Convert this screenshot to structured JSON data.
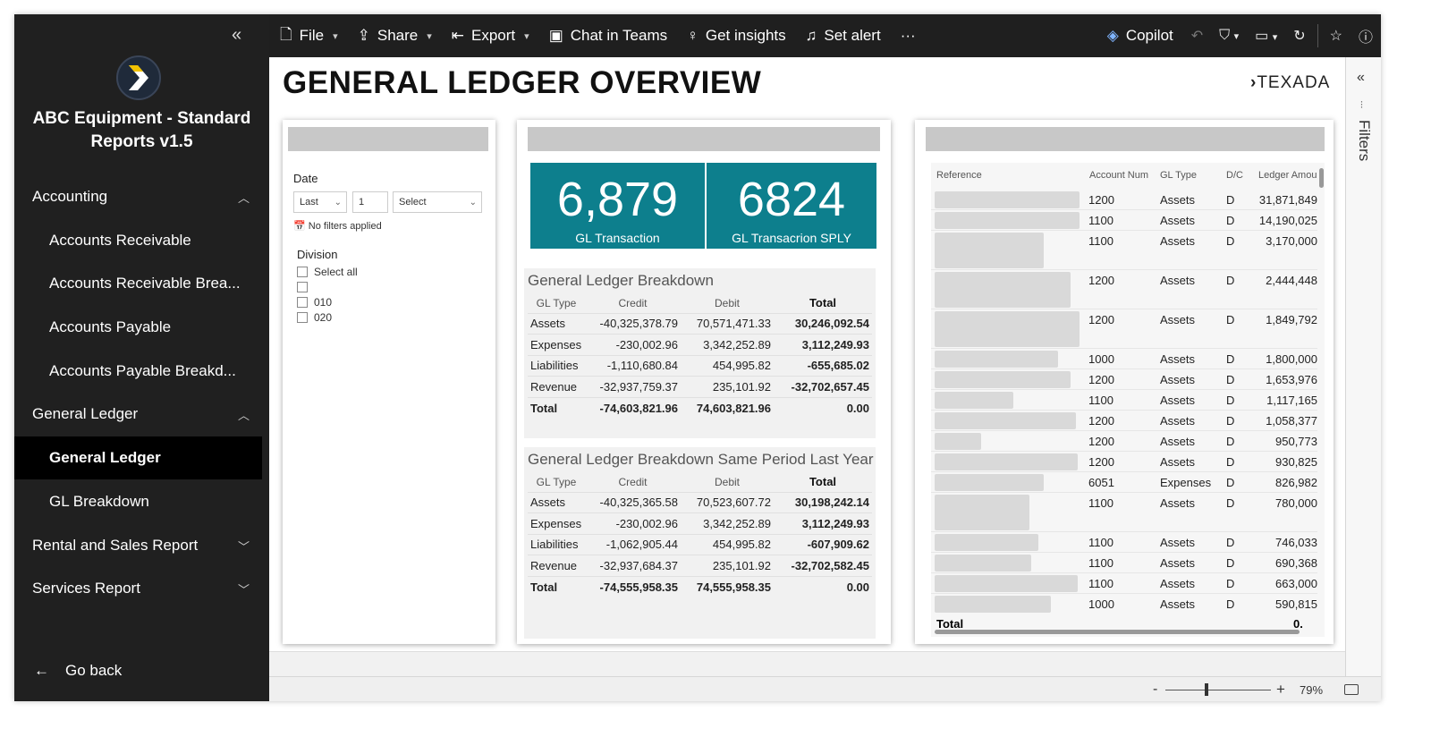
{
  "sidebar": {
    "collapse_icon": "double-chevron-left-icon",
    "app_title": "ABC Equipment - Standard Reports v1.5",
    "sections": [
      {
        "label": "Accounting",
        "expanded": true,
        "items": [
          "Accounts Receivable",
          "Accounts Receivable Brea...",
          "Accounts Payable",
          "Accounts Payable Breakd..."
        ]
      },
      {
        "label": "General Ledger",
        "expanded": true,
        "items": [
          "General Ledger",
          "GL Breakdown"
        ],
        "active_item": "General Ledger"
      },
      {
        "label": "Rental and Sales Report",
        "expanded": false,
        "items": []
      },
      {
        "label": "Services Report",
        "expanded": false,
        "items": []
      }
    ],
    "go_back": "Go back"
  },
  "toolbar": {
    "file": "File",
    "share": "Share",
    "export": "Export",
    "chat_in_teams": "Chat in Teams",
    "get_insights": "Get insights",
    "set_alert": "Set alert",
    "more": "···",
    "copilot": "Copilot"
  },
  "report": {
    "title": "GENERAL LEDGER OVERVIEW",
    "brand": "TEXADA",
    "filters": {
      "date_label": "Date",
      "date_mode": "Last",
      "date_count": "1",
      "date_unit_placeholder": "Select",
      "no_filters": "No filters applied",
      "division_label": "Division",
      "division_options": [
        "Select all",
        "",
        "010",
        "020"
      ]
    },
    "kpis": [
      {
        "value": "6,879",
        "label": "GL Transaction"
      },
      {
        "value": "6824",
        "label": "GL Transacrion SPLY"
      }
    ],
    "breakdown": {
      "title": "General Ledger Breakdown",
      "columns": [
        "GL Type",
        "Credit",
        "Debit",
        "Total"
      ],
      "rows": [
        [
          "Assets",
          "-40,325,378.79",
          "70,571,471.33",
          "30,246,092.54"
        ],
        [
          "Expenses",
          "-230,002.96",
          "3,342,252.89",
          "3,112,249.93"
        ],
        [
          "Liabilities",
          "-1,110,680.84",
          "454,995.82",
          "-655,685.02"
        ],
        [
          "Revenue",
          "-32,937,759.37",
          "235,101.92",
          "-32,702,657.45"
        ]
      ],
      "total": [
        "Total",
        "-74,603,821.96",
        "74,603,821.96",
        "0.00"
      ]
    },
    "breakdown_sply": {
      "title": "General Ledger Breakdown Same Period Last Year",
      "columns": [
        "GL Type",
        "Credit",
        "Debit",
        "Total"
      ],
      "rows": [
        [
          "Assets",
          "-40,325,365.58",
          "70,523,607.72",
          "30,198,242.14"
        ],
        [
          "Expenses",
          "-230,002.96",
          "3,342,252.89",
          "3,112,249.93"
        ],
        [
          "Liabilities",
          "-1,062,905.44",
          "454,995.82",
          "-607,909.62"
        ],
        [
          "Revenue",
          "-32,937,684.37",
          "235,101.92",
          "-32,702,582.45"
        ]
      ],
      "total": [
        "Total",
        "-74,555,958.35",
        "74,555,958.35",
        "0.00"
      ]
    },
    "ledger": {
      "columns": [
        "Reference",
        "Account Num",
        "GL Type",
        "D/C",
        "Ledger Amou"
      ],
      "rows": [
        {
          "account": "1200",
          "type": "Assets",
          "dc": "D",
          "amount": "31,871,849"
        },
        {
          "account": "1100",
          "type": "Assets",
          "dc": "D",
          "amount": "14,190,025"
        },
        {
          "account": "1100",
          "type": "Assets",
          "dc": "D",
          "amount": "3,170,000"
        },
        {
          "account": "1200",
          "type": "Assets",
          "dc": "D",
          "amount": "2,444,448"
        },
        {
          "account": "1200",
          "type": "Assets",
          "dc": "D",
          "amount": "1,849,792"
        },
        {
          "account": "1000",
          "type": "Assets",
          "dc": "D",
          "amount": "1,800,000"
        },
        {
          "account": "1200",
          "type": "Assets",
          "dc": "D",
          "amount": "1,653,976"
        },
        {
          "account": "1100",
          "type": "Assets",
          "dc": "D",
          "amount": "1,117,165"
        },
        {
          "account": "1200",
          "type": "Assets",
          "dc": "D",
          "amount": "1,058,377"
        },
        {
          "account": "1200",
          "type": "Assets",
          "dc": "D",
          "amount": "950,773"
        },
        {
          "account": "1200",
          "type": "Assets",
          "dc": "D",
          "amount": "930,825"
        },
        {
          "account": "6051",
          "type": "Expenses",
          "dc": "D",
          "amount": "826,982"
        },
        {
          "account": "1100",
          "type": "Assets",
          "dc": "D",
          "amount": "780,000"
        },
        {
          "account": "1100",
          "type": "Assets",
          "dc": "D",
          "amount": "746,033"
        },
        {
          "account": "1100",
          "type": "Assets",
          "dc": "D",
          "amount": "690,368"
        },
        {
          "account": "1100",
          "type": "Assets",
          "dc": "D",
          "amount": "663,000"
        },
        {
          "account": "1000",
          "type": "Assets",
          "dc": "D",
          "amount": "590,815"
        }
      ],
      "total_label": "Total",
      "total_value": "0."
    }
  },
  "filters_pane": {
    "label": "Filters"
  },
  "statusbar": {
    "zoom": "79%"
  },
  "colors": {
    "kpi": "#0d7f8d",
    "sidebar": "#202020",
    "toolbar": "#1f1f1f"
  }
}
